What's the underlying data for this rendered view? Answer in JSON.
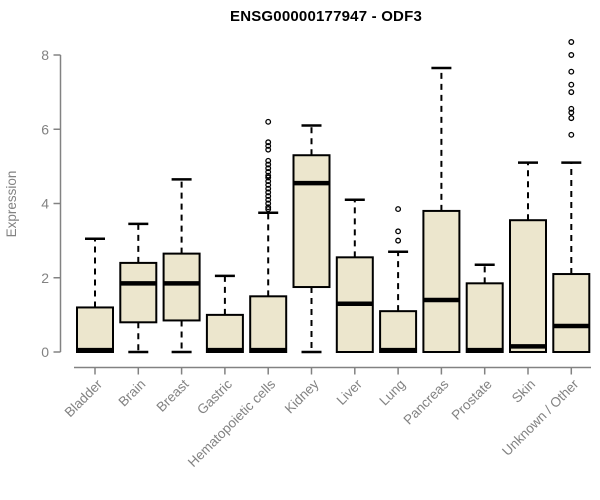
{
  "title": "ENSG00000177947 - ODF3",
  "chart_data": {
    "type": "boxplot",
    "title": "ENSG00000177947 - ODF3",
    "ylabel": "Expression",
    "xlabel": "",
    "yticks": [
      0,
      2,
      4,
      6,
      8
    ],
    "ylim": [
      0,
      8.5
    ],
    "grid": false,
    "legend": "none",
    "categories": [
      "Bladder",
      "Brain",
      "Breast",
      "Gastric",
      "Hematopoietic cells",
      "Kidney",
      "Liver",
      "Lung",
      "Pancreas",
      "Prostate",
      "Skin",
      "Unknown / Other"
    ],
    "boxes": [
      {
        "category": "Bladder",
        "whisker_low": 0,
        "q1": 0,
        "median": 0.05,
        "q3": 1.2,
        "whisker_high": 3.05,
        "outliers": []
      },
      {
        "category": "Brain",
        "whisker_low": 0,
        "q1": 0.8,
        "median": 1.85,
        "q3": 2.4,
        "whisker_high": 3.45,
        "outliers": []
      },
      {
        "category": "Breast",
        "whisker_low": 0,
        "q1": 0.85,
        "median": 1.85,
        "q3": 2.65,
        "whisker_high": 4.65,
        "outliers": []
      },
      {
        "category": "Gastric",
        "whisker_low": 0,
        "q1": 0,
        "median": 0.05,
        "q3": 1.0,
        "whisker_high": 2.05,
        "outliers": []
      },
      {
        "category": "Hematopoietic cells",
        "whisker_low": 0,
        "q1": 0,
        "median": 0.05,
        "q3": 1.5,
        "whisker_high": 3.75,
        "outliers": [
          6.2,
          5.65,
          5.55,
          5.45,
          5.15,
          5.05,
          4.95,
          4.85,
          4.75,
          4.7,
          4.6,
          4.5,
          4.4,
          4.3,
          4.2,
          4.1,
          4.0,
          3.9,
          3.85
        ]
      },
      {
        "category": "Kidney",
        "whisker_low": 0,
        "q1": 1.75,
        "median": 4.55,
        "q3": 5.3,
        "whisker_high": 6.1,
        "outliers": []
      },
      {
        "category": "Liver",
        "whisker_low": 0,
        "q1": 0,
        "median": 1.3,
        "q3": 2.55,
        "whisker_high": 4.1,
        "outliers": []
      },
      {
        "category": "Lung",
        "whisker_low": 0,
        "q1": 0,
        "median": 0.05,
        "q3": 1.1,
        "whisker_high": 2.7,
        "outliers": [
          3.0,
          3.25,
          3.85
        ]
      },
      {
        "category": "Pancreas",
        "whisker_low": 0,
        "q1": 0,
        "median": 1.4,
        "q3": 3.8,
        "whisker_high": 7.65,
        "outliers": []
      },
      {
        "category": "Prostate",
        "whisker_low": 0,
        "q1": 0,
        "median": 0.05,
        "q3": 1.85,
        "whisker_high": 2.35,
        "outliers": []
      },
      {
        "category": "Skin",
        "whisker_low": 0,
        "q1": 0,
        "median": 0.15,
        "q3": 3.55,
        "whisker_high": 5.1,
        "outliers": []
      },
      {
        "category": "Unknown / Other",
        "whisker_low": 0,
        "q1": 0,
        "median": 0.7,
        "q3": 2.1,
        "whisker_high": 5.1,
        "outliers": [
          8.35,
          8.0,
          7.55,
          7.2,
          7.0,
          6.55,
          6.45,
          6.3,
          5.85
        ]
      }
    ],
    "colors": {
      "box_fill": "#ECE6CD",
      "box_border": "#000000",
      "median": "#000000",
      "whisker": "#000000",
      "outlier": "#000000",
      "axis": "#828282",
      "tick_labels": "#828282",
      "title": "#000000",
      "background": "#FFFFFF"
    }
  }
}
